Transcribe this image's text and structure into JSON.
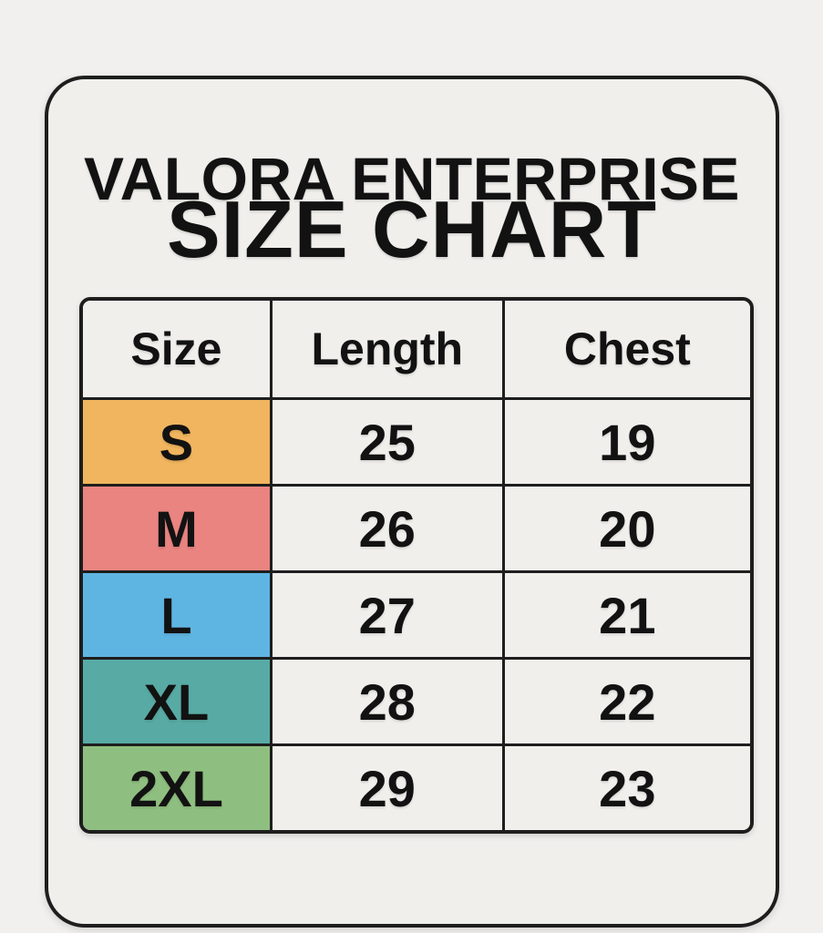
{
  "page": {
    "background": "#f1f0ee",
    "card_background": "#f0efec",
    "border_color": "#1e1e1e",
    "text_color": "#121212"
  },
  "header": {
    "brand": "VALORA ENTERPRISE",
    "title": "SIZE CHART"
  },
  "chart_data": {
    "type": "table",
    "title": "VALORA ENTERPRISE SIZE CHART",
    "columns": [
      "Size",
      "Length",
      "Chest"
    ],
    "rows": [
      {
        "size": "S",
        "length": 25,
        "chest": 19,
        "color": "#f0b55e"
      },
      {
        "size": "M",
        "length": 26,
        "chest": 20,
        "color": "#e98480"
      },
      {
        "size": "L",
        "length": 27,
        "chest": 21,
        "color": "#5fb5e2"
      },
      {
        "size": "XL",
        "length": 28,
        "chest": 22,
        "color": "#58aba4"
      },
      {
        "size": "2XL",
        "length": 29,
        "chest": 23,
        "color": "#8fbf80"
      }
    ]
  }
}
